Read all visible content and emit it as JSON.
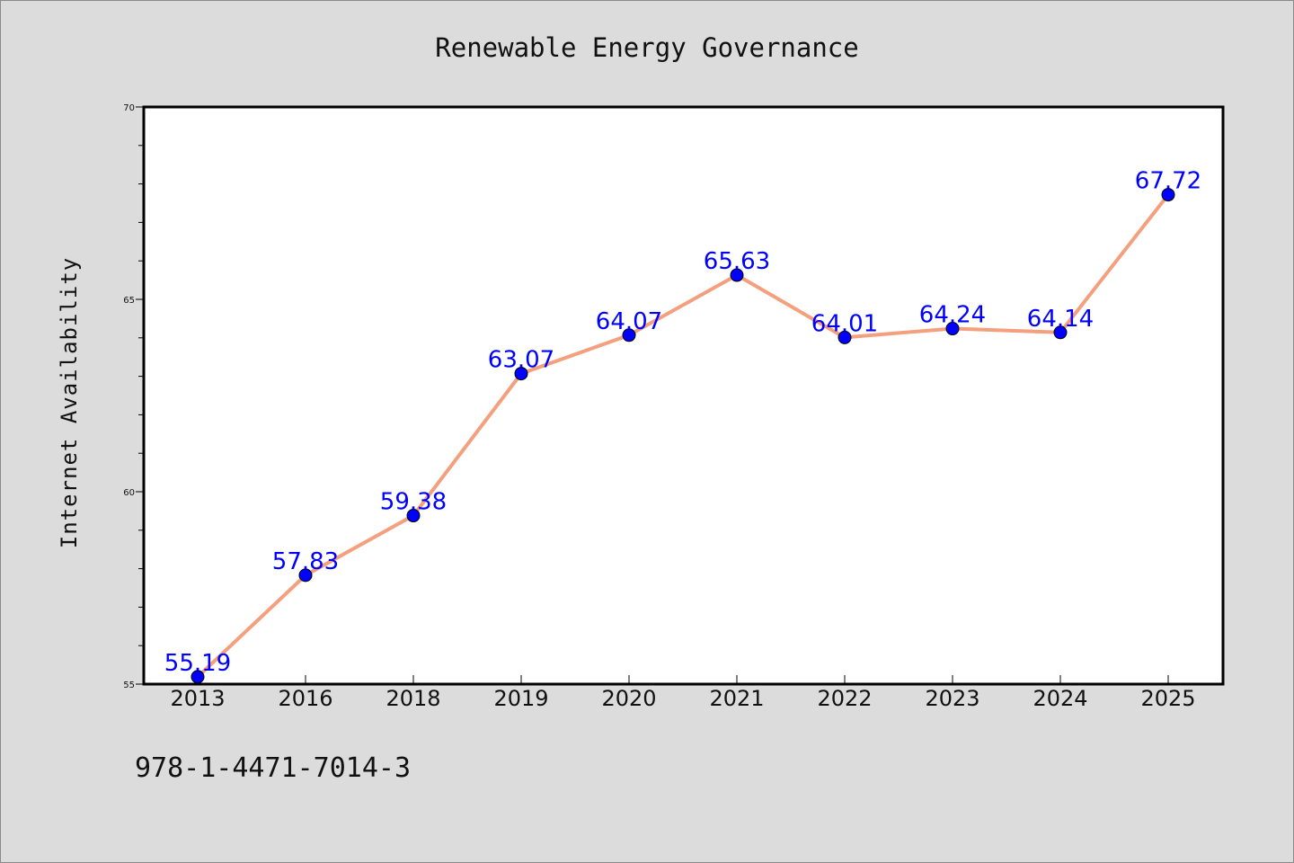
{
  "chart_data": {
    "type": "line",
    "title": "Renewable Energy Governance",
    "xlabel": "",
    "ylabel": "Internet Availability",
    "categories": [
      "2013",
      "2016",
      "2018",
      "2019",
      "2020",
      "2021",
      "2022",
      "2023",
      "2024",
      "2025"
    ],
    "series": [
      {
        "values": [
          55.19,
          57.83,
          59.38,
          63.07,
          64.07,
          65.63,
          64.01,
          64.24,
          64.14,
          67.72
        ]
      }
    ],
    "data_labels": [
      "55.19",
      "57.83",
      "59.38",
      "63.07",
      "64.07",
      "65.63",
      "64.01",
      "64.24",
      "64.14",
      "67.72"
    ],
    "ylim": [
      55,
      70
    ],
    "yticks": [
      55,
      60,
      65,
      70
    ],
    "grid": false,
    "colors": {
      "line": "#f4a07e",
      "marker": "#0000ff",
      "label": "#0000ff",
      "background": "#dcdcdc",
      "plot_background": "#ffffff"
    }
  },
  "footnote": "978-1-4471-7014-3"
}
